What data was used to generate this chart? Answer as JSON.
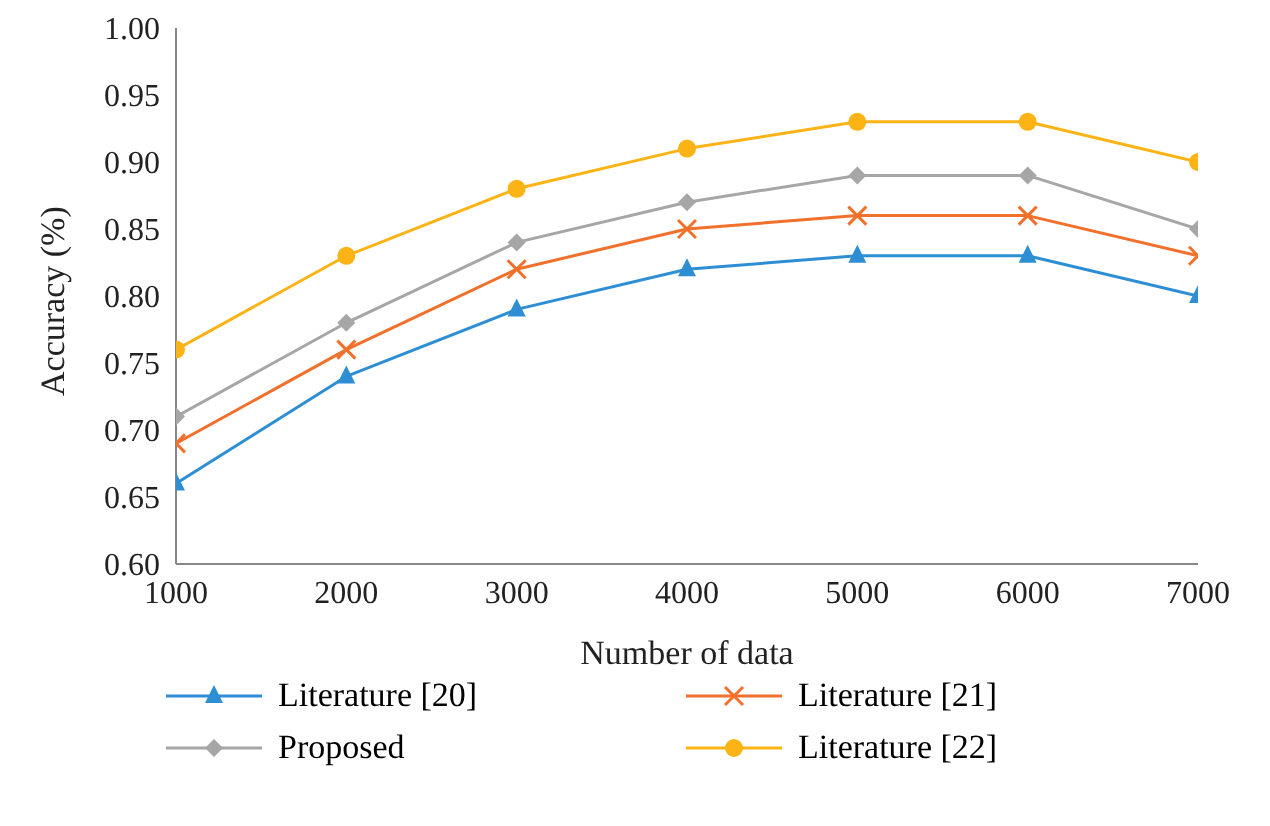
{
  "chart_data": {
    "type": "line",
    "xlabel": "Number of data",
    "ylabel": "Accuracy (%)",
    "x": [
      1000,
      2000,
      3000,
      4000,
      5000,
      6000,
      7000
    ],
    "series": [
      {
        "name": "Literature [20]",
        "color": "#2e8ed3",
        "marker": "triangle",
        "values": [
          0.66,
          0.74,
          0.79,
          0.82,
          0.83,
          0.83,
          0.8
        ]
      },
      {
        "name": "Literature [21]",
        "color": "#f0702c",
        "marker": "cross",
        "values": [
          0.69,
          0.76,
          0.82,
          0.85,
          0.86,
          0.86,
          0.83
        ]
      },
      {
        "name": "Proposed",
        "color": "#a6a6a6",
        "marker": "diamond",
        "values": [
          0.71,
          0.78,
          0.84,
          0.87,
          0.89,
          0.89,
          0.85
        ]
      },
      {
        "name": "Literature [22]",
        "color": "#fbb316",
        "marker": "circle",
        "values": [
          0.76,
          0.83,
          0.88,
          0.91,
          0.93,
          0.93,
          0.9
        ]
      }
    ],
    "xlim": [
      1000,
      7000
    ],
    "xticks": [
      1000,
      2000,
      3000,
      4000,
      5000,
      6000,
      7000
    ],
    "ylim": [
      0.6,
      1.0
    ],
    "yticks": [
      {
        "value": 0.6,
        "label": "0.60"
      },
      {
        "value": 0.65,
        "label": "0.65"
      },
      {
        "value": 0.7,
        "label": "0.70"
      },
      {
        "value": 0.75,
        "label": "0.75"
      },
      {
        "value": 0.8,
        "label": "0.80"
      },
      {
        "value": 0.85,
        "label": "0.85"
      },
      {
        "value": 0.9,
        "label": "0.90"
      },
      {
        "value": 0.95,
        "label": "0.95"
      },
      {
        "value": 1.0,
        "label": "1.00"
      }
    ],
    "grid": false,
    "legend": "bottom",
    "line_style": "solid"
  }
}
